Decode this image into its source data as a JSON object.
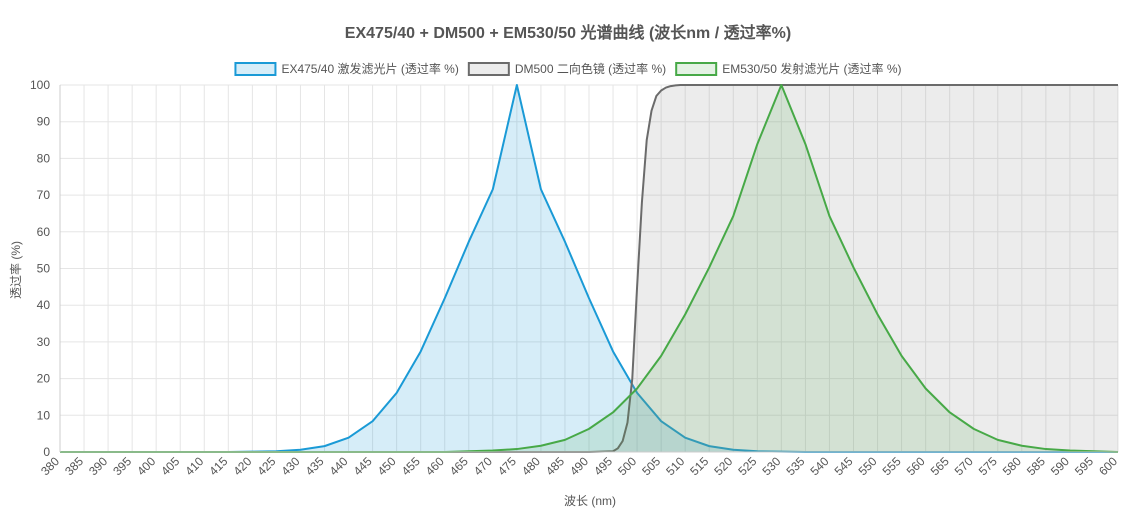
{
  "chart_data": {
    "type": "area",
    "title": "EX475/40 + DM500 + EM530/50 光谱曲线 (波长nm / 透过率%)",
    "xlabel": "波长 (nm)",
    "ylabel": "透过率 (%)",
    "xlim": [
      380,
      600
    ],
    "ylim": [
      0,
      100
    ],
    "x_ticks": [
      380,
      385,
      390,
      395,
      400,
      405,
      410,
      415,
      420,
      425,
      430,
      435,
      440,
      445,
      450,
      455,
      460,
      465,
      470,
      475,
      480,
      485,
      490,
      495,
      500,
      505,
      510,
      515,
      520,
      525,
      530,
      535,
      540,
      545,
      550,
      555,
      560,
      565,
      570,
      575,
      580,
      585,
      590,
      595,
      600
    ],
    "y_ticks": [
      0,
      10,
      20,
      30,
      40,
      50,
      60,
      70,
      80,
      90,
      100
    ],
    "grid": true,
    "legend_position": "top",
    "series": [
      {
        "name": "EX475/40 激发滤光片 (透过率 %)",
        "color": "#1a9ad6",
        "fill": "rgba(26,154,214,0.18)",
        "x": [
          380,
          385,
          390,
          395,
          400,
          405,
          410,
          415,
          420,
          425,
          430,
          435,
          440,
          445,
          450,
          455,
          460,
          465,
          470,
          475,
          480,
          485,
          490,
          495,
          500,
          505,
          510,
          515,
          520,
          525,
          530,
          535,
          540,
          545,
          550,
          555,
          560,
          565,
          570,
          575,
          580,
          585,
          590,
          595,
          600
        ],
        "values": [
          0,
          0,
          0,
          0,
          0,
          0,
          0,
          0,
          0.1,
          0.2,
          0.6,
          1.6,
          3.9,
          8.4,
          16.1,
          27.4,
          41.9,
          57.3,
          71.6,
          100,
          71.6,
          57.3,
          41.9,
          27.4,
          16.1,
          8.4,
          3.9,
          1.6,
          0.6,
          0.2,
          0.1,
          0,
          0,
          0,
          0,
          0,
          0,
          0,
          0,
          0,
          0,
          0,
          0,
          0,
          0
        ]
      },
      {
        "name": "DM500 二向色镜 (透过率 %)",
        "color": "#6b6b6b",
        "fill": "rgba(150,150,150,0.18)",
        "x": [
          380,
          385,
          390,
          395,
          400,
          405,
          410,
          415,
          420,
          425,
          430,
          435,
          440,
          445,
          450,
          455,
          460,
          465,
          470,
          475,
          480,
          485,
          490,
          495,
          496,
          497,
          498,
          499,
          500,
          501,
          502,
          503,
          504,
          505,
          506,
          507,
          508,
          509,
          510,
          515,
          520,
          530,
          540,
          550,
          560,
          570,
          580,
          590,
          600
        ],
        "values": [
          0,
          0,
          0,
          0,
          0,
          0,
          0,
          0,
          0,
          0,
          0,
          0,
          0,
          0,
          0,
          0,
          0,
          0,
          0,
          0,
          0,
          0,
          0,
          0.2,
          1,
          3,
          8,
          20,
          45,
          68,
          85,
          93,
          97,
          98.5,
          99.3,
          99.7,
          99.9,
          100,
          100,
          100,
          100,
          100,
          100,
          100,
          100,
          100,
          100,
          100,
          100
        ]
      },
      {
        "name": "EM530/50 发射滤光片 (透过率 %)",
        "color": "#47a947",
        "fill": "rgba(71,169,71,0.15)",
        "x": [
          380,
          385,
          390,
          395,
          400,
          405,
          410,
          415,
          420,
          425,
          430,
          435,
          440,
          445,
          450,
          455,
          460,
          465,
          470,
          475,
          480,
          485,
          490,
          495,
          500,
          505,
          510,
          515,
          520,
          525,
          530,
          535,
          540,
          545,
          550,
          555,
          560,
          565,
          570,
          575,
          580,
          585,
          590,
          595,
          600
        ],
        "values": [
          0,
          0,
          0,
          0,
          0,
          0,
          0,
          0,
          0,
          0,
          0,
          0,
          0,
          0,
          0,
          0,
          0,
          0.2,
          0.4,
          0.8,
          1.7,
          3.3,
          6.3,
          10.8,
          17.3,
          26.2,
          37.5,
          50.3,
          64.3,
          83.9,
          100,
          83.9,
          64.3,
          50.3,
          37.5,
          26.2,
          17.3,
          10.8,
          6.3,
          3.3,
          1.7,
          0.8,
          0.4,
          0.2,
          0
        ]
      }
    ]
  }
}
